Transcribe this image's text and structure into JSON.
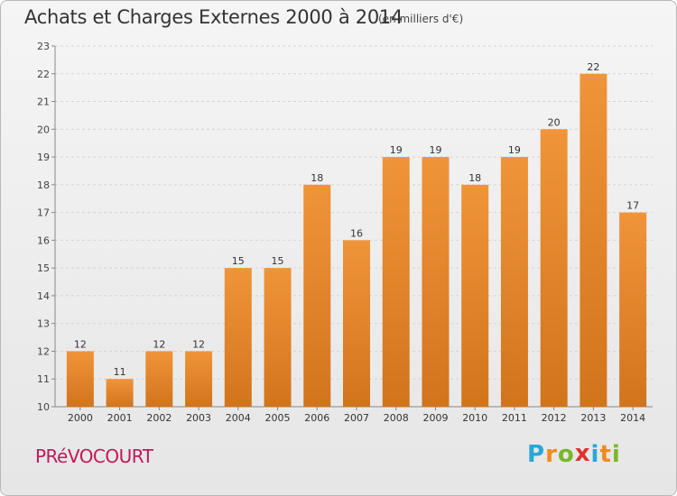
{
  "header": {
    "title": "Achats et Charges Externes 2000 à 2014",
    "unit": "(en milliers d'€)"
  },
  "footer": {
    "place": "PRéVOCOURT",
    "logo_letters": [
      {
        "char": "P",
        "color": "#2aa7d8"
      },
      {
        "char": "r",
        "color": "#f18a1c"
      },
      {
        "char": "o",
        "color": "#79b829"
      },
      {
        "char": "x",
        "color": "#e0322f"
      },
      {
        "char": "i",
        "color": "#2aa7d8"
      },
      {
        "char": "t",
        "color": "#f18a1c"
      },
      {
        "char": "i",
        "color": "#79b829"
      }
    ]
  },
  "chart_data": {
    "type": "bar",
    "categories": [
      "2000",
      "2001",
      "2002",
      "2003",
      "2004",
      "2005",
      "2006",
      "2007",
      "2008",
      "2009",
      "2010",
      "2011",
      "2012",
      "2013",
      "2014"
    ],
    "values": [
      12,
      11,
      12,
      12,
      15,
      15,
      18,
      16,
      19,
      19,
      18,
      19,
      20,
      22,
      17
    ],
    "ylim": [
      10,
      23
    ],
    "yticks": [
      10,
      11,
      12,
      13,
      14,
      15,
      16,
      17,
      18,
      19,
      20,
      21,
      22,
      23
    ],
    "grid": true,
    "bar_color": "#f0943a",
    "bar_color_dark": "#d2741c"
  }
}
